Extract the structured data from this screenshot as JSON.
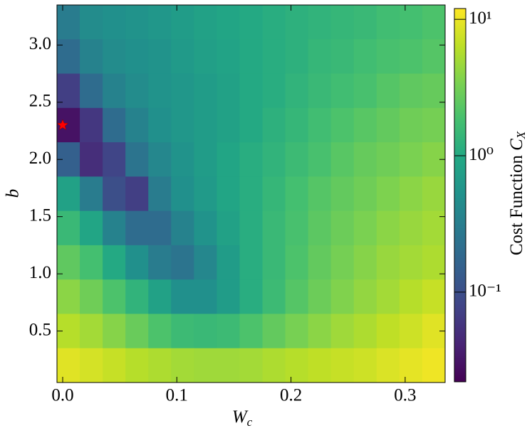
{
  "chart_data": {
    "type": "heatmap",
    "xlabel": {
      "base": "W",
      "sub": "c"
    },
    "ylabel": "b",
    "colorbar_label": {
      "text": "Cost Function ",
      "math": "C",
      "sub": "X"
    },
    "colormap": "viridis",
    "color_scale": "log",
    "x": [
      0.005,
      0.025,
      0.045,
      0.065,
      0.085,
      0.105,
      0.125,
      0.145,
      0.165,
      0.185,
      0.205,
      0.225,
      0.245,
      0.265,
      0.285,
      0.305,
      0.325
    ],
    "y": [
      3.2,
      2.9,
      2.6,
      2.3,
      2.0,
      1.7,
      1.4,
      1.1,
      0.8,
      0.5,
      0.2
    ],
    "values": [
      [
        0.3,
        0.45,
        0.5,
        0.55,
        0.6,
        0.7,
        0.8,
        0.9,
        1.0,
        1.1,
        1.2,
        1.3,
        1.4,
        1.5,
        1.7,
        1.8,
        2.0
      ],
      [
        0.2,
        0.35,
        0.45,
        0.5,
        0.55,
        0.65,
        0.75,
        0.85,
        1.0,
        1.1,
        1.2,
        1.4,
        1.5,
        1.7,
        1.9,
        2.0,
        2.2
      ],
      [
        0.07,
        0.2,
        0.35,
        0.45,
        0.55,
        0.6,
        0.7,
        0.8,
        1.0,
        1.1,
        1.3,
        1.5,
        1.7,
        1.9,
        2.2,
        2.5,
        2.7
      ],
      [
        0.03,
        0.06,
        0.2,
        0.35,
        0.5,
        0.6,
        0.7,
        0.8,
        1.0,
        1.2,
        1.4,
        1.7,
        2.0,
        2.3,
        2.6,
        3.0,
        3.2
      ],
      [
        0.15,
        0.05,
        0.08,
        0.25,
        0.4,
        0.55,
        0.7,
        0.9,
        1.1,
        1.3,
        1.6,
        1.9,
        2.3,
        2.7,
        3.0,
        3.4,
        3.8
      ],
      [
        0.8,
        0.3,
        0.1,
        0.07,
        0.3,
        0.5,
        0.65,
        0.9,
        1.1,
        1.4,
        1.8,
        2.2,
        2.6,
        3.0,
        3.5,
        4.0,
        4.5
      ],
      [
        1.5,
        0.9,
        0.35,
        0.2,
        0.2,
        0.35,
        0.55,
        0.8,
        1.1,
        1.5,
        1.9,
        2.4,
        2.9,
        3.4,
        4.0,
        4.5,
        5.0
      ],
      [
        2.5,
        1.8,
        1.0,
        0.5,
        0.3,
        0.25,
        0.4,
        0.7,
        1.1,
        1.5,
        2.0,
        2.6,
        3.2,
        3.8,
        4.5,
        5.0,
        5.5
      ],
      [
        4.0,
        3.0,
        2.0,
        1.3,
        0.8,
        0.5,
        0.5,
        0.7,
        1.1,
        1.6,
        2.2,
        2.9,
        3.6,
        4.3,
        5.0,
        6.0,
        7.0
      ],
      [
        6.0,
        5.0,
        3.8,
        2.8,
        2.0,
        1.6,
        1.5,
        1.6,
        2.0,
        2.6,
        3.3,
        4.0,
        4.8,
        5.5,
        6.5,
        7.5,
        9.0
      ],
      [
        9.0,
        8.0,
        7.0,
        6.0,
        5.5,
        5.0,
        4.8,
        4.8,
        5.0,
        5.5,
        6.0,
        6.5,
        7.0,
        7.5,
        8.5,
        9.5,
        10.5
      ]
    ],
    "marker": {
      "x": 0,
      "y": 2.3,
      "color": "#ff0000"
    },
    "xlim": [
      -0.005,
      0.335
    ],
    "ylim": [
      0.05,
      3.35
    ],
    "zlim": [
      0.022,
      12
    ],
    "xticks": [
      {
        "value": 0,
        "label": "0.0"
      },
      0.1,
      0.2,
      0.3
    ],
    "yticks": [
      0.5,
      {
        "value": 1,
        "label": "1.0"
      },
      1.5,
      {
        "value": 2,
        "label": "2.0"
      },
      2.5,
      {
        "value": 3,
        "label": "3.0"
      }
    ],
    "zticks": [
      {
        "value": 0.1,
        "label": "10⁻¹"
      },
      {
        "value": 1,
        "label": "10⁰"
      },
      {
        "value": 10,
        "label": "10¹"
      }
    ]
  }
}
